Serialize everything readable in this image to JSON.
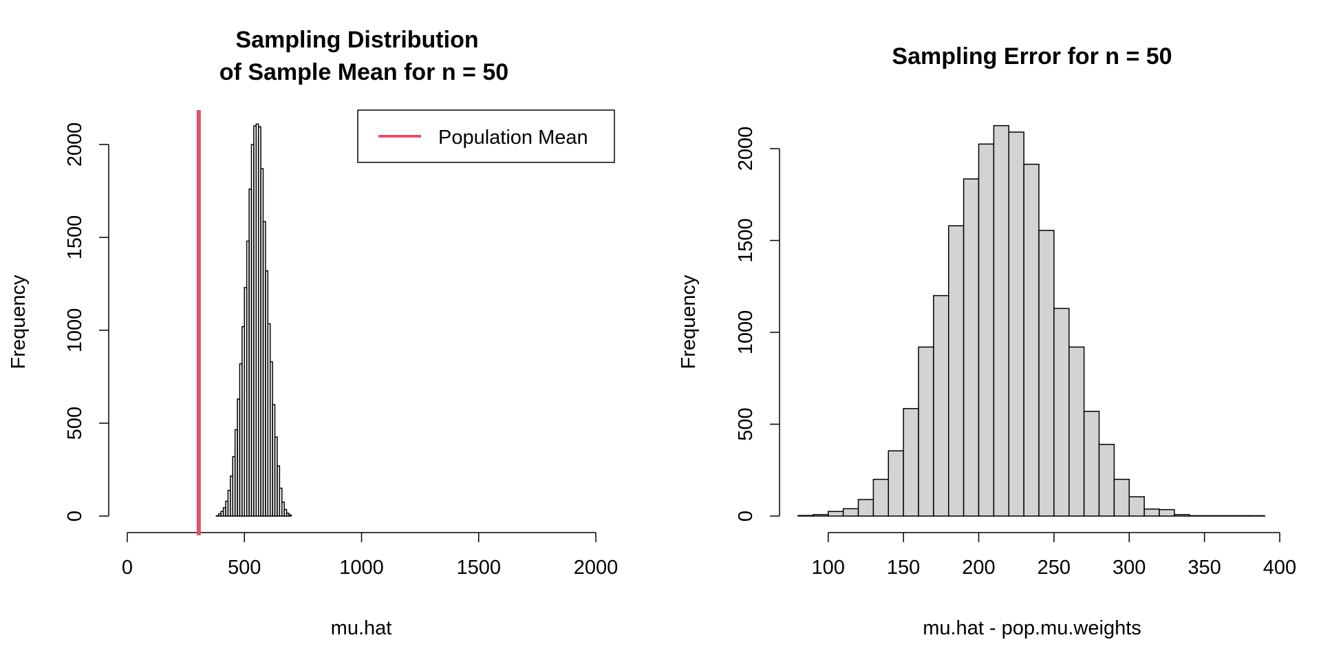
{
  "chart_data": [
    {
      "type": "bar",
      "title_lines": [
        "Sampling Distribution",
        "of Sample Mean for n = 50"
      ],
      "xlabel": "mu.hat",
      "ylabel": "Frequency",
      "xlim": [
        0,
        2000
      ],
      "ylim": [
        0,
        2000
      ],
      "x_ticks": [
        0,
        500,
        1000,
        1500,
        2000
      ],
      "y_ticks": [
        0,
        500,
        1000,
        1500,
        2000
      ],
      "x_tick_labels": [
        "0",
        "500",
        "1000",
        "1500",
        "2000"
      ],
      "y_tick_labels": [
        "0",
        "500",
        "1000",
        "1500",
        "2000"
      ],
      "bin_width": 10,
      "bin_start": 380,
      "values": [
        2,
        12,
        25,
        45,
        80,
        138,
        215,
        320,
        465,
        630,
        820,
        1020,
        1230,
        1480,
        1760,
        2000,
        2100,
        2110,
        2095,
        1870,
        1585,
        1320,
        1035,
        830,
        600,
        425,
        270,
        150,
        75,
        35,
        15,
        6
      ],
      "reference_line": {
        "x": 305,
        "color": "#DF536B",
        "label": "Population Mean"
      },
      "legend": {
        "position": "top-right",
        "entries": [
          "Population Mean"
        ]
      }
    },
    {
      "type": "bar",
      "title": "Sampling Error for n = 50",
      "xlabel": "mu.hat - pop.mu.weights",
      "ylabel": "Frequency",
      "xlim": [
        80,
        400
      ],
      "ylim": [
        0,
        2100
      ],
      "x_ticks": [
        100,
        150,
        200,
        250,
        300,
        350,
        400
      ],
      "y_ticks": [
        0,
        500,
        1000,
        1500,
        2000
      ],
      "x_tick_labels": [
        "100",
        "150",
        "200",
        "250",
        "300",
        "350",
        "400"
      ],
      "y_tick_labels": [
        "0",
        "500",
        "1000",
        "1500",
        "2000"
      ],
      "bin_width": 10,
      "bin_start": 80,
      "values": [
        3,
        8,
        25,
        40,
        90,
        200,
        355,
        585,
        920,
        1200,
        1580,
        1835,
        2025,
        2125,
        2090,
        1915,
        1555,
        1130,
        920,
        570,
        390,
        200,
        105,
        38,
        35,
        8,
        2,
        2,
        2,
        2,
        2
      ],
      "bar_fill": "#D3D3D3"
    }
  ]
}
